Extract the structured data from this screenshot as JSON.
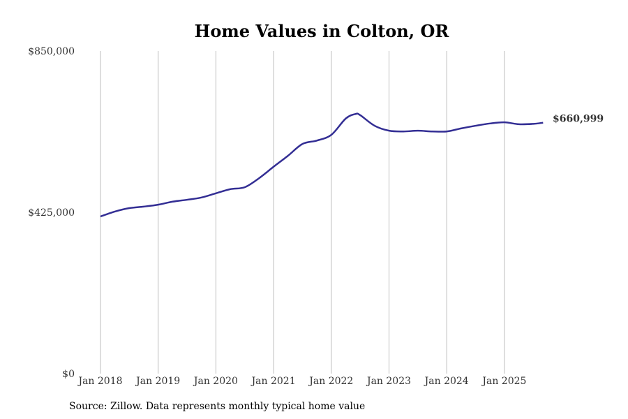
{
  "chart_data": {
    "type": "line",
    "title": "Home Values in Colton, OR",
    "xlabel": "",
    "ylabel": "",
    "source": "Source: Zillow. Data represents monthly typical home value",
    "ylim": [
      0,
      850000
    ],
    "xlim": [
      2018,
      2025.75
    ],
    "y_ticks": [
      0,
      425000,
      850000
    ],
    "y_tick_labels": [
      "$0",
      "$425,000",
      "$850,000"
    ],
    "x_ticks": [
      2018,
      2019,
      2020,
      2021,
      2022,
      2023,
      2024,
      2025
    ],
    "x_tick_labels": [
      "Jan 2018",
      "Jan 2019",
      "Jan 2020",
      "Jan 2021",
      "Jan 2022",
      "Jan 2023",
      "Jan 2024",
      "Jan 2025"
    ],
    "grid": "vertical",
    "line_color": "#332e94",
    "end_label": "$660,999",
    "series": [
      {
        "name": "Typical home value",
        "x": [
          2018,
          2018.25,
          2018.5,
          2018.75,
          2019,
          2019.25,
          2019.5,
          2019.75,
          2020,
          2020.25,
          2020.5,
          2020.75,
          2021,
          2021.25,
          2021.5,
          2021.75,
          2022,
          2022.25,
          2022.42,
          2022.5,
          2022.75,
          2023,
          2023.25,
          2023.5,
          2023.75,
          2024,
          2024.25,
          2024.5,
          2024.75,
          2025,
          2025.25,
          2025.5,
          2025.67
        ],
        "values": [
          414000,
          427000,
          436000,
          440000,
          445000,
          453000,
          458000,
          464000,
          475000,
          486000,
          491000,
          515000,
          545000,
          574000,
          605000,
          614000,
          629000,
          672000,
          684000,
          681000,
          653000,
          640000,
          638000,
          640000,
          638000,
          638000,
          646000,
          653000,
          659000,
          662000,
          657000,
          658000,
          660999
        ]
      }
    ]
  }
}
